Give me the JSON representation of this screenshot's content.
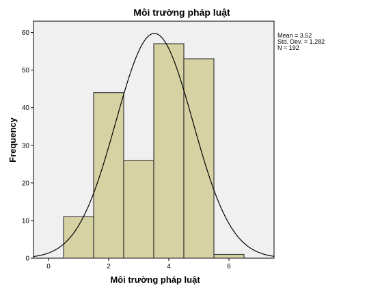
{
  "chart_data": {
    "type": "histogram",
    "title": "Môi trường pháp luật",
    "xlabel": "Môi trường pháp luật",
    "ylabel": "Frequency",
    "xlim": [
      -0.5,
      7.5
    ],
    "ylim": [
      0,
      63
    ],
    "x_ticks": [
      0,
      2,
      4,
      6
    ],
    "y_ticks": [
      0,
      10,
      20,
      30,
      40,
      50,
      60
    ],
    "bins": [
      {
        "center": 1,
        "value": 11
      },
      {
        "center": 2,
        "value": 44
      },
      {
        "center": 3,
        "value": 26
      },
      {
        "center": 4,
        "value": 57
      },
      {
        "center": 5,
        "value": 53
      },
      {
        "center": 6,
        "value": 1
      }
    ],
    "bin_width": 1,
    "normal_curve": {
      "mean": 3.52,
      "sd": 1.282,
      "n": 192
    },
    "stats_lines": [
      "Mean = 3.52",
      "Std. Dev. = 1.282",
      "N = 192"
    ],
    "colors": {
      "bar_fill": "#d6d2a4",
      "bar_stroke": "#3a3a3a",
      "plot_bg": "#f0f0f0",
      "curve": "#000000"
    }
  }
}
